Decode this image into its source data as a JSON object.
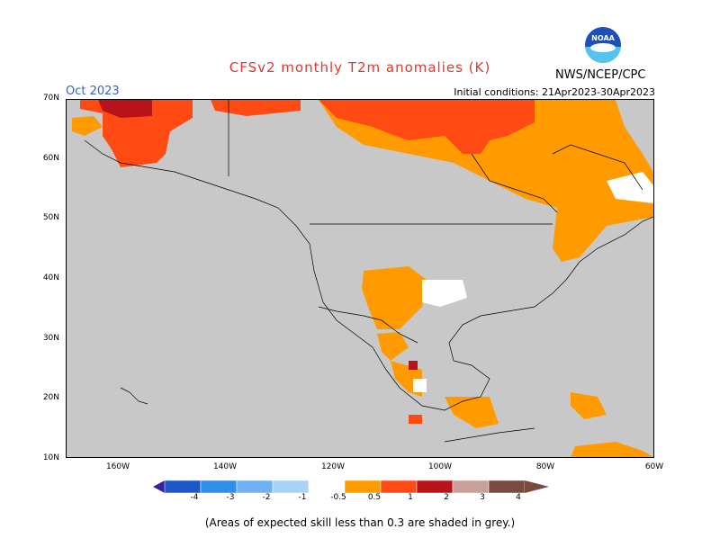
{
  "header": {
    "title": "CFSv2 monthly T2m anomalies (K)",
    "month": "Oct 2023",
    "initial_conditions": "Initial conditions: 21Apr2023-30Apr2023",
    "agency": "NWS/NCEP/CPC",
    "logo_text": "NOAA"
  },
  "map": {
    "background_color": "#c8c8c8",
    "lat_labels": [
      "70N",
      "60N",
      "50N",
      "40N",
      "30N",
      "20N",
      "10N"
    ],
    "lon_labels": [
      "160W",
      "140W",
      "120W",
      "100W",
      "80W",
      "60W"
    ]
  },
  "colorbar": {
    "labels": [
      "-4",
      "-3",
      "-2",
      "-1",
      "-0.5",
      "0.5",
      "1",
      "2",
      "3",
      "4"
    ],
    "colors": [
      "#3a1fa3",
      "#1d58c9",
      "#2f8ee8",
      "#6fb2f2",
      "#a9d2f7",
      "#ffffff",
      "#ff9a00",
      "#ff4a14",
      "#b8121a",
      "#c8a097",
      "#7a4a40"
    ]
  },
  "footnote": "(Areas of expected skill less than 0.3 are shaded in grey.)"
}
